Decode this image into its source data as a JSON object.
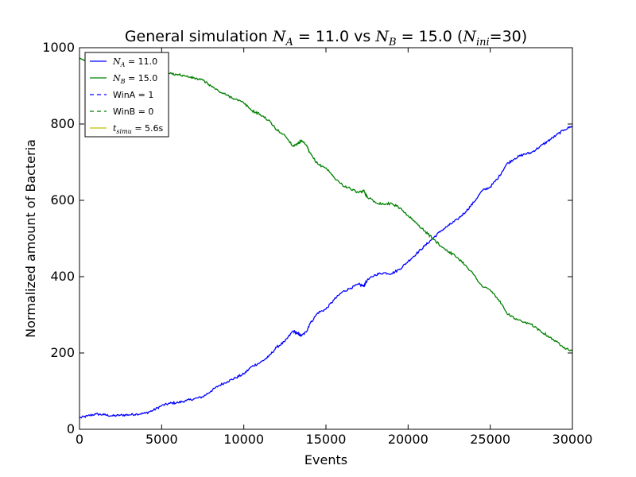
{
  "chart_data": {
    "type": "line",
    "title": {
      "prefix": "General simulation ",
      "na_sym": "N",
      "na_sub": "A",
      "na_val": " = 11.0 vs ",
      "nb_sym": "N",
      "nb_sub": "B",
      "nb_val": " = 15.0 (",
      "ni_sym": "N",
      "ni_sub": "ini",
      "ni_val": "=30)"
    },
    "xlabel": "Events",
    "ylabel": "Normalized amount of Bacteria",
    "xlim": [
      0,
      30000
    ],
    "ylim": [
      0,
      1000
    ],
    "xticks": [
      "0",
      "5000",
      "10000",
      "15000",
      "20000",
      "25000",
      "30000"
    ],
    "yticks": [
      "0",
      "200",
      "400",
      "600",
      "800",
      "1000"
    ],
    "grid": false,
    "legend_position": "top-left",
    "legend": [
      {
        "sym": "N",
        "sub": "A",
        "rest": " = 11.0",
        "color": "#0000ff",
        "style": "solid"
      },
      {
        "sym": "N",
        "sub": "B",
        "rest": " = 15.0",
        "color": "#008000",
        "style": "solid"
      },
      {
        "text": "WinA = 1",
        "color": "#0000ff",
        "style": "dashed"
      },
      {
        "text": "WinB = 0",
        "color": "#008000",
        "style": "dashed"
      },
      {
        "sym": "t",
        "sub": "simu",
        "rest": " = 5.6s",
        "color": "#bfbf00",
        "style": "solid"
      }
    ],
    "series": [
      {
        "color": "#0000ff",
        "x": [
          0,
          500,
          1000,
          1500,
          2000,
          2500,
          3000,
          3500,
          4000,
          4500,
          5000,
          5500,
          6000,
          6500,
          7000,
          7500,
          8000,
          8500,
          9000,
          9500,
          10000,
          10500,
          11000,
          11500,
          12000,
          12500,
          13000,
          13300,
          13500,
          13800,
          14000,
          14500,
          15000,
          15500,
          16000,
          16500,
          17000,
          17300,
          17500,
          18000,
          18500,
          19000,
          19500,
          20000,
          20500,
          21000,
          21500,
          22000,
          22500,
          23000,
          23500,
          24000,
          24500,
          25000,
          25500,
          26000,
          26500,
          27000,
          27500,
          28000,
          28500,
          29000,
          29500,
          30000
        ],
        "y": [
          30,
          35,
          40,
          38,
          35,
          37,
          38,
          40,
          42,
          50,
          62,
          68,
          70,
          75,
          80,
          85,
          100,
          115,
          125,
          135,
          145,
          165,
          175,
          190,
          215,
          230,
          258,
          250,
          245,
          255,
          275,
          305,
          315,
          340,
          360,
          370,
          380,
          375,
          390,
          405,
          410,
          408,
          420,
          440,
          460,
          480,
          500,
          520,
          535,
          550,
          570,
          595,
          625,
          635,
          660,
          695,
          710,
          720,
          725,
          740,
          755,
          770,
          785,
          795
        ]
      },
      {
        "color": "#008000",
        "x": [
          0,
          500,
          1000,
          1500,
          2000,
          2500,
          3000,
          3500,
          4000,
          4500,
          5000,
          5500,
          6000,
          6500,
          7000,
          7500,
          8000,
          8500,
          9000,
          9500,
          10000,
          10500,
          11000,
          11500,
          12000,
          12500,
          13000,
          13300,
          13500,
          13800,
          14000,
          14500,
          15000,
          15500,
          16000,
          16500,
          17000,
          17300,
          17500,
          18000,
          18500,
          19000,
          19500,
          20000,
          20500,
          21000,
          21500,
          22000,
          22500,
          23000,
          23500,
          24000,
          24500,
          25000,
          25500,
          26000,
          26500,
          27000,
          27500,
          28000,
          28500,
          29000,
          29500,
          30000
        ],
        "y": [
          970,
          965,
          960,
          962,
          965,
          963,
          962,
          960,
          958,
          950,
          938,
          932,
          930,
          925,
          920,
          915,
          900,
          885,
          875,
          865,
          855,
          835,
          825,
          810,
          785,
          770,
          742,
          750,
          755,
          745,
          725,
          695,
          685,
          660,
          640,
          630,
          620,
          625,
          610,
          595,
          590,
          592,
          580,
          560,
          540,
          520,
          500,
          480,
          465,
          450,
          430,
          405,
          375,
          365,
          340,
          305,
          290,
          280,
          275,
          260,
          245,
          230,
          215,
          205
        ]
      }
    ]
  }
}
